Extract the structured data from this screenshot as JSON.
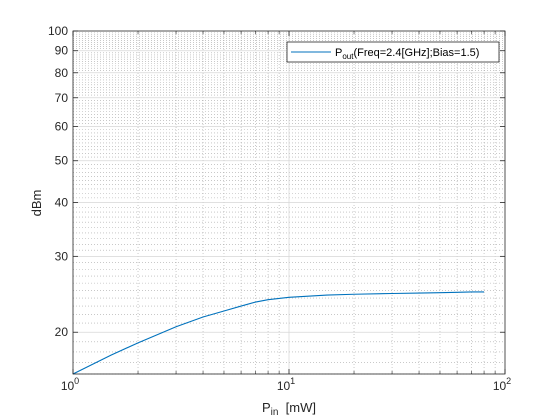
{
  "chart_data": {
    "type": "line",
    "xscale": "log",
    "yscale": "log",
    "xlim": [
      1,
      100
    ],
    "ylim": [
      16,
      100
    ],
    "grid": true,
    "minor_grid": true,
    "legend_location": "top-right",
    "xlabel": {
      "main": "P",
      "sub": "in",
      "rest": "  [mW]"
    },
    "ylabel": "dBm",
    "x_ticks": [
      {
        "value": 1,
        "base": "10",
        "exp": "0"
      },
      {
        "value": 10,
        "base": "10",
        "exp": "1"
      },
      {
        "value": 100,
        "base": "10",
        "exp": "2"
      }
    ],
    "y_ticks": [
      {
        "value": 20,
        "label": "20"
      },
      {
        "value": 30,
        "label": "30"
      },
      {
        "value": 40,
        "label": "40"
      },
      {
        "value": 50,
        "label": "50"
      },
      {
        "value": 60,
        "label": "60"
      },
      {
        "value": 70,
        "label": "70"
      },
      {
        "value": 80,
        "label": "80"
      },
      {
        "value": 90,
        "label": "90"
      },
      {
        "value": 100,
        "label": "100"
      }
    ],
    "series": [
      {
        "name": {
          "main": "P",
          "sub": "out",
          "rest": "(Freq=2.4[GHz];Bias=1.5)"
        },
        "color": "#0072bd",
        "x": [
          1,
          1.5,
          2,
          3,
          4,
          5,
          6,
          7,
          8,
          10,
          15,
          20,
          30,
          40,
          50,
          60,
          70,
          80
        ],
        "y": [
          16,
          17.7,
          18.9,
          20.6,
          21.7,
          22.4,
          23.0,
          23.5,
          23.8,
          24.1,
          24.4,
          24.5,
          24.6,
          24.65,
          24.7,
          24.75,
          24.8,
          24.8
        ]
      }
    ]
  }
}
